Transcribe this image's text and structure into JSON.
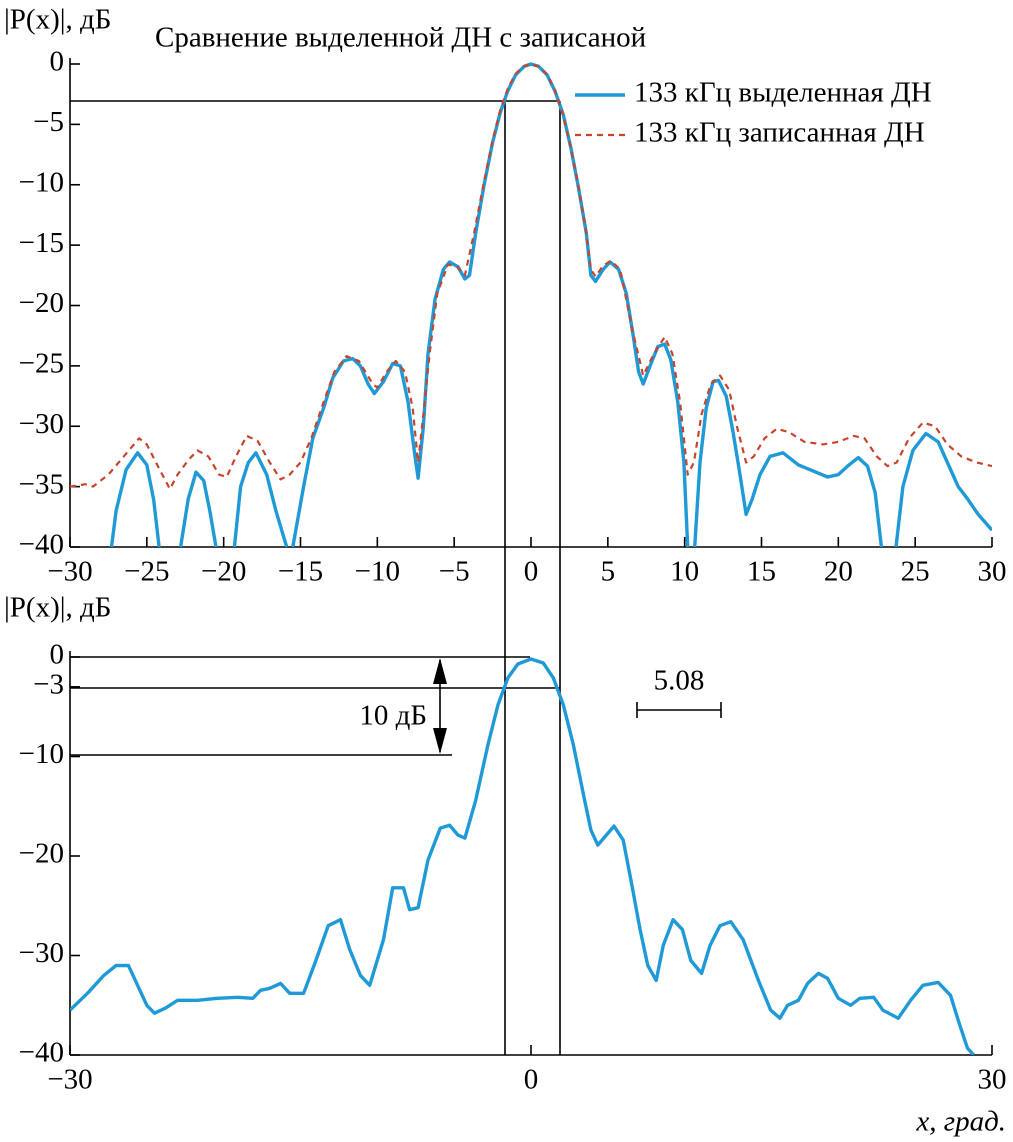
{
  "chart_data": [
    {
      "type": "line",
      "title": "Сравнение выделенной ДН с записаной",
      "y_label": "|P(x)|, дБ",
      "xlim": [
        -30,
        30
      ],
      "xticks": [
        {
          "value": -30,
          "label": "−30"
        },
        {
          "value": -25,
          "label": "−25"
        },
        {
          "value": -20,
          "label": "−20"
        },
        {
          "value": -15,
          "label": "−15"
        },
        {
          "value": -10,
          "label": "−10"
        },
        {
          "value": -5,
          "label": "−5"
        },
        0,
        5,
        10,
        15,
        20,
        25,
        30
      ],
      "ylim": [
        -40,
        0
      ],
      "yticks": [
        0,
        {
          "value": -5,
          "label": "−5"
        },
        {
          "value": -10,
          "label": "−10"
        },
        {
          "value": -15,
          "label": "−15"
        },
        {
          "value": -20,
          "label": "−20"
        },
        {
          "value": -25,
          "label": "−25"
        },
        {
          "value": -30,
          "label": "−30"
        },
        {
          "value": -35,
          "label": "−35"
        },
        {
          "value": -40,
          "label": "−40"
        }
      ],
      "legend": "top-right",
      "series": [
        {
          "name": "133 кГц выделенная ДН",
          "color": "#1f9ad6",
          "dash": false,
          "x": [
            -27.3,
            -27.0,
            -26.35,
            -25.6,
            -25.0,
            -24.55,
            -24.2,
            -23.5,
            -22.8,
            -22.3,
            -21.8,
            -21.3,
            -20.9,
            -20.5,
            -19.9,
            -19.3,
            -18.9,
            -18.4,
            -17.9,
            -17.2,
            -16.6,
            -15.9,
            -15.7,
            -15.5,
            -14.8,
            -14.2,
            -13.5,
            -12.9,
            -12.2,
            -11.6,
            -11.1,
            -10.6,
            -10.2,
            -9.6,
            -9.0,
            -8.5,
            -8.0,
            -7.6,
            -7.35,
            -7.0,
            -6.7,
            -6.25,
            -5.7,
            -5.3,
            -4.75,
            -4.3,
            -4.0,
            -3.6,
            -3.05,
            -2.5,
            -2.0,
            -1.5,
            -1.0,
            -0.45,
            0,
            0.5,
            1.05,
            1.55,
            2.1,
            2.6,
            3.1,
            3.6,
            3.9,
            4.2,
            4.7,
            5.15,
            5.7,
            6.2,
            6.65,
            7.0,
            7.3,
            7.75,
            8.25,
            8.7,
            9.1,
            9.55,
            9.95,
            10.2,
            10.4,
            10.65,
            11.0,
            11.4,
            11.85,
            12.2,
            12.7,
            13.15,
            13.6,
            14.0,
            14.4,
            14.9,
            15.55,
            16.4,
            17.4,
            18.35,
            19.3,
            20.0,
            20.6,
            21.3,
            21.9,
            22.4,
            22.8,
            23.3,
            23.75,
            24.2,
            24.85,
            25.7,
            26.5,
            27.1,
            27.8,
            28.4,
            29.1,
            30
          ],
          "values": [
            -40,
            -37,
            -33.6,
            -32.2,
            -33.2,
            -36.1,
            -40,
            null,
            -40,
            -36,
            -33.8,
            -34.5,
            -37,
            -40,
            null,
            -40,
            -35,
            -33,
            -32.2,
            -34,
            -37,
            -40,
            null,
            -40,
            -35,
            -31,
            -28.5,
            -26,
            -24.6,
            -24.4,
            -25,
            -26.5,
            -27.3,
            -26.3,
            -24.8,
            -25,
            -28,
            -32,
            -34.3,
            -30,
            -24,
            -19.5,
            -17,
            -16.4,
            -16.8,
            -17.8,
            -17.5,
            -14,
            -10,
            -6.5,
            -4,
            -2.2,
            -0.9,
            -0.2,
            0,
            -0.2,
            -0.9,
            -2.2,
            -4.2,
            -7,
            -10.3,
            -14,
            -17.5,
            -18,
            -17,
            -16.4,
            -17,
            -19,
            -22.5,
            -25.5,
            -26.5,
            -25,
            -23.4,
            -23.2,
            -24.5,
            -28,
            -33,
            -40,
            null,
            -40,
            -33,
            -28.5,
            -26.3,
            -26.2,
            -27.5,
            -30.5,
            -34,
            -37.3,
            -36,
            -34,
            -32.5,
            -32.2,
            -33.2,
            -33.7,
            -34.2,
            -34,
            -33.3,
            -32.6,
            -33.3,
            -35.5,
            -40,
            null,
            -40,
            -35,
            -32,
            -30.6,
            -31.3,
            -33,
            -35,
            -36,
            -37.3,
            -38.6
          ]
        },
        {
          "name": "133 кГц записанная ДН",
          "color": "#c8452c",
          "dash": true,
          "x": [
            -30,
            -29,
            -28.5,
            -27.5,
            -26.5,
            -25.5,
            -25,
            -24.2,
            -23.5,
            -23,
            -22.3,
            -21.7,
            -21,
            -20.3,
            -19.8,
            -19.2,
            -18.5,
            -17.8,
            -17,
            -16.3,
            -15.7,
            -15,
            -14.3,
            -13.5,
            -12.8,
            -12,
            -11.2,
            -10.3,
            -10,
            -9.4,
            -8.8,
            -8.2,
            -7.7,
            -7.35,
            -7,
            -6.6,
            -6.1,
            -5.4,
            -4.8,
            -4.3,
            -3.7,
            -3.1,
            -2.5,
            -2,
            -1.5,
            -1,
            -0.5,
            0,
            0.5,
            1,
            1.5,
            2,
            2.6,
            3.1,
            3.6,
            3.9,
            4.2,
            4.7,
            5.2,
            5.8,
            6.6,
            7.3,
            8,
            8.7,
            9.2,
            9.7,
            10.2,
            10.6,
            11.1,
            11.7,
            12.3,
            12.9,
            13.4,
            14,
            14.5,
            15.2,
            16,
            16.8,
            17.8,
            19,
            20,
            21,
            21.7,
            22.5,
            23.2,
            23.8,
            24.6,
            25.5,
            26.3,
            27.1,
            28,
            29,
            30
          ],
          "values": [
            -35,
            -34.8,
            -35,
            -34,
            -32.5,
            -31,
            -31.5,
            -33.5,
            -35.2,
            -34,
            -32.8,
            -32,
            -32.5,
            -34,
            -34.2,
            -32.5,
            -30.8,
            -31.2,
            -33,
            -34.4,
            -34,
            -33,
            -31,
            -28,
            -25.5,
            -24.2,
            -24.6,
            -26.5,
            -26.8,
            -25.5,
            -24.6,
            -25.5,
            -28.5,
            -33,
            -29,
            -24,
            -19,
            -16.6,
            -16.8,
            -17.5,
            -14,
            -10,
            -6.3,
            -3.8,
            -2,
            -0.8,
            -0.2,
            0,
            -0.2,
            -0.8,
            -2,
            -3.8,
            -7,
            -10.2,
            -14,
            -17,
            -17.6,
            -16.7,
            -16.3,
            -17,
            -22,
            -25.8,
            -24,
            -22.6,
            -24,
            -28,
            -34,
            -33,
            -29,
            -26.5,
            -25.8,
            -27,
            -30,
            -33,
            -32.5,
            -31,
            -30.2,
            -30.5,
            -31.3,
            -31.5,
            -31.3,
            -30.8,
            -31,
            -32.5,
            -33.3,
            -33,
            -31,
            -29.7,
            -30,
            -31.5,
            -32.5,
            -33,
            -33.3
          ]
        }
      ]
    },
    {
      "type": "line",
      "y_label": "|P(x)|, дБ",
      "x_label": "x, град.",
      "xlim": [
        -30,
        30
      ],
      "xticks": [
        {
          "value": -30,
          "label": "−30"
        },
        0,
        30
      ],
      "ylim": [
        -40,
        0
      ],
      "yticks": [
        0,
        {
          "value": -3,
          "label": "−3"
        },
        {
          "value": -10,
          "label": "−10"
        },
        {
          "value": -20,
          "label": "−20"
        },
        {
          "value": -30,
          "label": "−30"
        },
        {
          "value": -40,
          "label": "−40"
        }
      ],
      "annotations": [
        "10 дБ",
        "5.08"
      ],
      "series": [
        {
          "color": "#1f9ad6",
          "dash": false,
          "x": [
            -30,
            -28.8,
            -27.8,
            -27,
            -26.2,
            -25.6,
            -25,
            -24.5,
            -23.8,
            -23,
            -21.7,
            -20.4,
            -19.1,
            -18.1,
            -17.6,
            -17,
            -16.3,
            -15.7,
            -14.8,
            -14,
            -13.2,
            -12.4,
            -11.8,
            -11.1,
            -10.5,
            -9.6,
            -9.0,
            -8.3,
            -7.9,
            -7.35,
            -6.7,
            -5.9,
            -5.3,
            -4.75,
            -4.3,
            -3.6,
            -2.8,
            -2.15,
            -1.5,
            -0.85,
            0,
            0.8,
            1.45,
            2.1,
            2.75,
            3.4,
            3.9,
            4.35,
            4.9,
            5.4,
            6.0,
            6.5,
            7.1,
            7.6,
            8.15,
            8.6,
            9.25,
            9.85,
            10.4,
            11.1,
            11.65,
            12.3,
            13.0,
            13.8,
            14.8,
            15.6,
            16.2,
            16.7,
            17.4,
            18.0,
            18.7,
            19.3,
            20.0,
            20.8,
            21.4,
            22.3,
            22.9,
            23.9,
            24.7,
            25.5,
            26.5,
            27.3,
            27.8,
            28.4,
            28.8
          ],
          "values": [
            -35.5,
            -33.7,
            -32,
            -31,
            -31,
            -33,
            -35,
            -35.8,
            -35.3,
            -34.5,
            -34.5,
            -34.3,
            -34.2,
            -34.3,
            -33.5,
            -33.3,
            -32.8,
            -33.8,
            -33.8,
            -30.5,
            -27,
            -26.4,
            -29.4,
            -32,
            -33,
            -28.4,
            -23.2,
            -23.2,
            -25.4,
            -25.2,
            -20.4,
            -17.2,
            -16.9,
            -17.9,
            -18.2,
            -14.4,
            -8.8,
            -4.8,
            -2.1,
            -0.7,
            -0.2,
            -0.6,
            -2.1,
            -4.8,
            -8.8,
            -13.7,
            -17.4,
            -18.9,
            -17.9,
            -17,
            -18.4,
            -22.4,
            -27.4,
            -31,
            -32.5,
            -29,
            -26.4,
            -27.4,
            -30.5,
            -31.8,
            -29,
            -27,
            -26.6,
            -28.4,
            -32.5,
            -35.5,
            -36.3,
            -35,
            -34.5,
            -32.8,
            -31.8,
            -32.3,
            -34.3,
            -35,
            -34.3,
            -34.2,
            -35.5,
            -36.3,
            -34.5,
            -33,
            -32.7,
            -34,
            -36.5,
            -39.3,
            -40
          ]
        }
      ]
    }
  ]
}
